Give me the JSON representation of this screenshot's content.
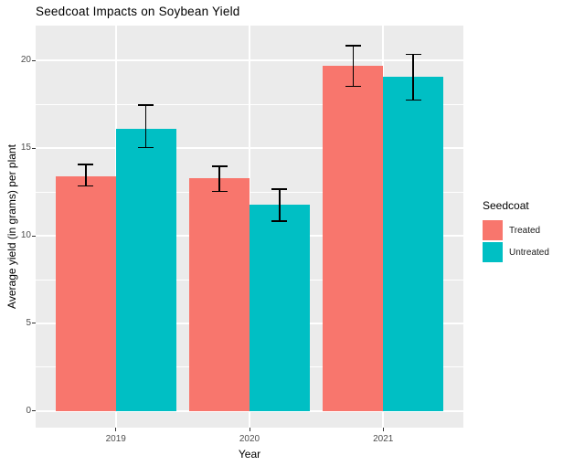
{
  "title": "Seedcoat Impacts on Soybean Yield",
  "legend": {
    "title": "Seedcoat",
    "items": [
      {
        "label": "Treated",
        "color": "#F8766D"
      },
      {
        "label": "Untreated",
        "color": "#00BFC4"
      }
    ]
  },
  "axes": {
    "x_label": "Year",
    "y_label": "Average yield (in grams) per plant",
    "x_tick_labels": [
      "2019",
      "2020",
      "2021"
    ],
    "y_tick_labels": [
      "0",
      "5",
      "10",
      "15",
      "20"
    ]
  },
  "chart_data": {
    "type": "bar",
    "title": "Seedcoat Impacts on Soybean Yield",
    "xlabel": "Year",
    "ylabel": "Average yield (in grams) per plant",
    "categories": [
      "2019",
      "2020",
      "2021"
    ],
    "series": [
      {
        "name": "Treated",
        "color": "#F8766D",
        "values": [
          13.4,
          13.3,
          19.7
        ],
        "error_low": [
          12.8,
          12.5,
          18.5
        ],
        "error_high": [
          14.1,
          14.0,
          20.9
        ]
      },
      {
        "name": "Untreated",
        "color": "#00BFC4",
        "values": [
          16.1,
          11.8,
          19.1
        ],
        "error_low": [
          15.0,
          10.8,
          17.7
        ],
        "error_high": [
          17.5,
          12.7,
          20.4
        ]
      }
    ],
    "ylim": [
      -0.95,
      22.0
    ],
    "y_major_gridlines": [
      0,
      5,
      10,
      15,
      20
    ],
    "y_minor_gridlines": [
      2.5,
      7.5,
      12.5,
      17.5
    ],
    "grid": true,
    "legend_position": "right",
    "panel_bg": "#EBEBEB",
    "grid_color": "#FFFFFF",
    "error_bar_color": "#000000"
  }
}
